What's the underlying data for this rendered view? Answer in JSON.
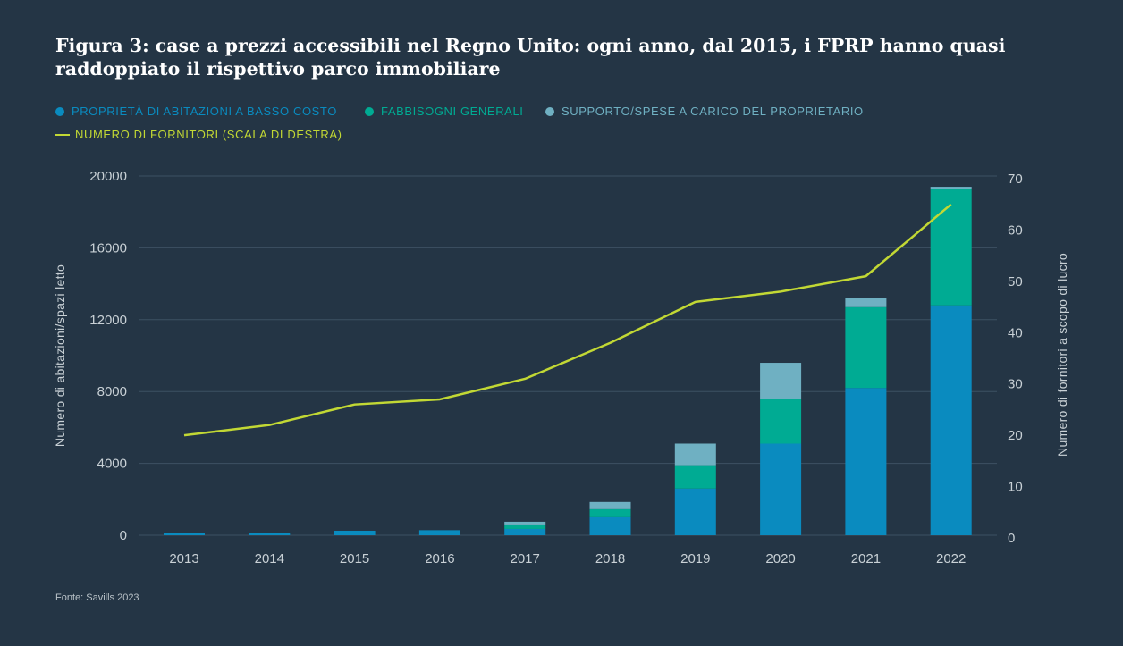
{
  "title": "Figura 3: case a prezzi accessibili nel Regno Unito: ogni anno, dal 2015, i FPRP hanno quasi raddoppiato il rispettivo parco immobiliare",
  "source": "Fonte: Savills 2023",
  "colors": {
    "background": "#243545",
    "low_cost_ownership": "#0a8bbf",
    "general_needs": "#00ab93",
    "supported": "#6fb0c2",
    "providers_line": "#c2d834",
    "grid": "#3d5163"
  },
  "legend": {
    "low_cost_ownership": "PROPRIETÀ DI ABITAZIONI A BASSO COSTO",
    "general_needs": "FABBISOGNI GENERALI",
    "supported": "SUPPORTO/SPESE A CARICO DEL PROPRIETARIO",
    "providers": "NUMERO DI FORNITORI (SCALA DI DESTRA)"
  },
  "chart_data": {
    "type": "bar",
    "stacked": true,
    "categories": [
      "2013",
      "2014",
      "2015",
      "2016",
      "2017",
      "2018",
      "2019",
      "2020",
      "2021",
      "2022"
    ],
    "series": [
      {
        "name": "PROPRIETÀ DI ABITAZIONI A BASSO COSTO",
        "values": [
          100,
          100,
          250,
          280,
          350,
          1000,
          2600,
          5100,
          8200,
          12800
        ]
      },
      {
        "name": "FABBISOGNI GENERALI",
        "values": [
          0,
          0,
          0,
          0,
          200,
          450,
          1300,
          2500,
          4500,
          6500
        ]
      },
      {
        "name": "SUPPORTO/SPESE A CARICO DEL PROPRIETARIO",
        "values": [
          0,
          0,
          0,
          0,
          200,
          400,
          1200,
          2000,
          500,
          100
        ]
      }
    ],
    "line_series": {
      "name": "NUMERO DI FORNITORI (SCALA DI DESTRA)",
      "axis": "right",
      "values": [
        20,
        22,
        26,
        27,
        31,
        38,
        46,
        48,
        51,
        65
      ]
    },
    "ylabel": "Numero di abitazioni/spazi letto",
    "ylabel_right": "Numero di fornitori a scopo di lucro",
    "ylim": [
      0,
      20000
    ],
    "yticks": [
      "0",
      "4000",
      "8000",
      "12000",
      "16000",
      "20000"
    ],
    "ylim_right": [
      0,
      70
    ],
    "yticks_right": [
      "0",
      "10",
      "20",
      "30",
      "40",
      "50",
      "60",
      "70"
    ],
    "grid": true,
    "legend_position": "top-left"
  }
}
